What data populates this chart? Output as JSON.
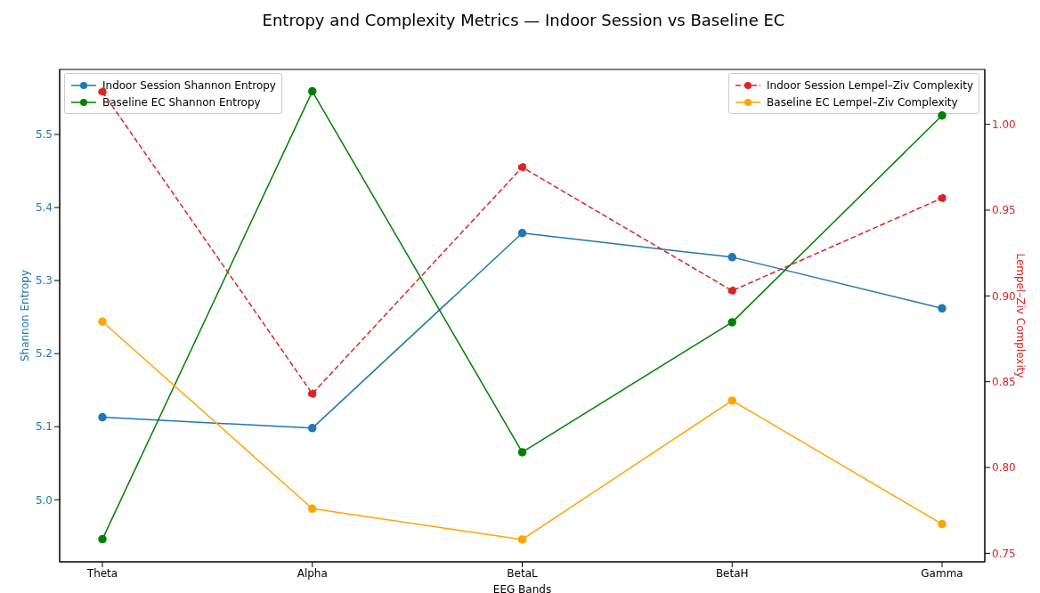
{
  "chart_data": {
    "type": "line",
    "title": "Entropy and Complexity Metrics — Indoor Session vs Baseline EC",
    "xlabel": "EEG Bands",
    "ylabel": "Shannon Entropy",
    "y2label": "Lempel–Ziv Complexity",
    "categories": [
      "Theta",
      "Alpha",
      "BetaL",
      "BetaH",
      "Gamma"
    ],
    "series": [
      {
        "name": "Indoor Session Shannon Entropy",
        "color": "#1f77b4",
        "values": [
          5.113,
          5.098,
          5.365,
          5.332,
          5.262
        ]
      },
      {
        "name": "Baseline EC Shannon Entropy",
        "color": "#008000",
        "values": [
          4.946,
          5.559,
          5.065,
          5.243,
          5.526
        ]
      },
      {
        "name": "Indoor Session Lempel–Ziv Complexity",
        "color": "#d62728",
        "axis": "y2",
        "line_style": "dashed",
        "values": [
          1.019,
          0.843,
          0.975,
          0.903,
          0.957
        ]
      },
      {
        "name": "Baseline EC Lempel–Ziv Complexity",
        "color": "#ffa500",
        "axis": "y2",
        "values": [
          0.885,
          0.776,
          0.758,
          0.839,
          0.767
        ]
      }
    ],
    "ylim": [
      4.915,
      5.589
    ],
    "yticks": [
      {
        "value": 5,
        "label": "5.0"
      },
      5.1,
      5.2,
      5.3,
      5.4,
      5.5
    ],
    "y2lim": [
      0.745,
      1.032
    ],
    "y2ticks": [
      0.75,
      {
        "value": 0.8,
        "label": "0.80"
      },
      0.85,
      {
        "value": 0.9,
        "label": "0.90"
      },
      0.95,
      {
        "value": 1,
        "label": "1.00"
      }
    ],
    "marker": "circle",
    "legend": "top left"
  }
}
